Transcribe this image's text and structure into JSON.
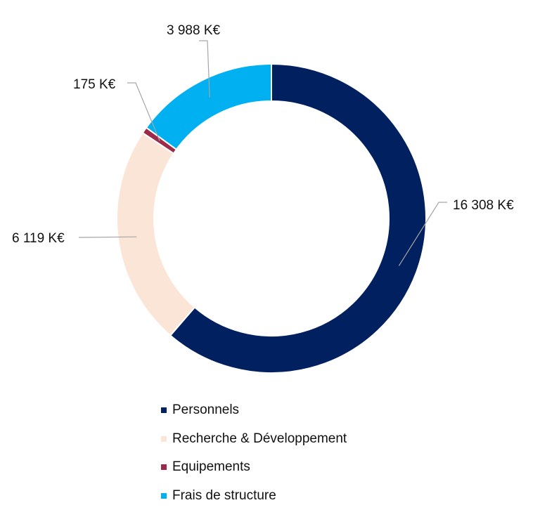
{
  "chart_data": {
    "type": "pie",
    "style": "donut",
    "title": "",
    "categories": [
      "Personnels",
      "Recherche & Développement",
      "Equipements",
      "Frais de structure"
    ],
    "values": [
      16308,
      6119,
      175,
      3988
    ],
    "unit": "K€",
    "data_labels": [
      "16 308 K€",
      "6 119 K€",
      "175 K€",
      "3 988 K€"
    ],
    "colors": [
      "#002060",
      "#FBE5D6",
      "#9E2A4B",
      "#00B0F0"
    ],
    "legend_position": "bottom"
  }
}
